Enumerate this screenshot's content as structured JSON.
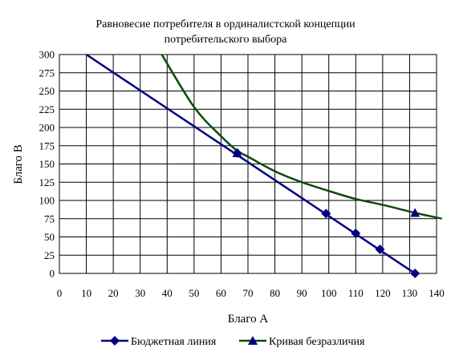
{
  "chart_data": {
    "type": "line",
    "title_lines": [
      "Равновесие потребителя в ординалистской концепции",
      "потребительского выбора"
    ],
    "xlabel": "Благо А",
    "ylabel": "Благо В",
    "xlim": [
      0,
      140
    ],
    "ylim": [
      0,
      300
    ],
    "x_ticks": [
      0,
      10,
      20,
      30,
      40,
      50,
      60,
      70,
      80,
      90,
      100,
      110,
      120,
      130,
      140
    ],
    "y_ticks": [
      0,
      25,
      50,
      75,
      100,
      125,
      150,
      175,
      200,
      225,
      250,
      275,
      300
    ],
    "grid": true,
    "legend_position": "bottom",
    "series": [
      {
        "name": "Бюджетная линия",
        "color": "#000080",
        "marker": "diamond",
        "line_points": [
          [
            10,
            300
          ],
          [
            132,
            0
          ]
        ],
        "marker_points": [
          [
            66,
            165
          ],
          [
            99,
            82
          ],
          [
            110,
            55
          ],
          [
            119,
            33
          ],
          [
            132,
            0
          ]
        ]
      },
      {
        "name": "Кривая безразличия",
        "color": "#0a4a0a",
        "marker": "triangle",
        "line_points": [
          [
            38,
            300
          ],
          [
            50,
            228
          ],
          [
            60,
            188
          ],
          [
            66,
            168
          ],
          [
            70,
            160
          ],
          [
            80,
            140
          ],
          [
            90,
            125
          ],
          [
            100,
            113
          ],
          [
            110,
            102
          ],
          [
            120,
            94
          ],
          [
            132,
            83
          ],
          [
            142,
            75
          ]
        ],
        "marker_points": [
          [
            66,
            165
          ],
          [
            132,
            83
          ]
        ]
      }
    ]
  }
}
